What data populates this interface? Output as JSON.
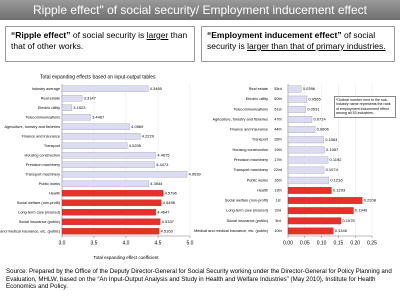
{
  "header": {
    "title": "Ripple effect\" of social security/ Employment inducement effect"
  },
  "callouts": [
    {
      "bold": "“Ripple effect”",
      "text": " of social security is ",
      "underline": "larger",
      "rest": " than that of other works."
    },
    {
      "bold": "“Employment inducement effect”",
      "text": " of social security is ",
      "underline": "larger than that of primary industries."
    }
  ],
  "chart_data": [
    {
      "type": "bar",
      "orientation": "horizontal",
      "title": "Total expanding effects based on input-output tables",
      "x_label": "Total expanding effect coefficient",
      "categories": [
        "Industry average",
        "Real estate",
        "Electric utility",
        "Telecommunications",
        "Agriculture, forestry and fisheries",
        "Finance and insurance",
        "Transport",
        "Housing construction",
        "Precision machinery",
        "Transport machinery",
        "Public works",
        "Health",
        "Social welfare (non-profit)",
        "Long-term care (insured)",
        "Social insurance (public)",
        "Medical and medical insurance, etc. (public)"
      ],
      "values": [
        4.3465,
        3.3147,
        3.1523,
        3.4467,
        4.0569,
        4.2229,
        4.0205,
        4.4675,
        4.4473,
        4.9539,
        4.3544,
        4.5796,
        4.5498,
        4.4647,
        4.5337,
        4.5163
      ],
      "colors": [
        "#dcdcf0",
        "#dcdcf0",
        "#dcdcf0",
        "#dcdcf0",
        "#dcdcf0",
        "#dcdcf0",
        "#dcdcf0",
        "#dcdcf0",
        "#dcdcf0",
        "#dcdcf0",
        "#dcdcf0",
        "#e8302a",
        "#e8302a",
        "#e8302a",
        "#e8302a",
        "#e8302a"
      ],
      "xlim": [
        3,
        5
      ],
      "xticks": [
        {
          "value": 3,
          "label": "3.0"
        },
        3.5,
        {
          "value": 4,
          "label": "4.0"
        },
        4.5,
        {
          "value": 5,
          "label": "5.0"
        }
      ],
      "grid": true
    },
    {
      "type": "bar",
      "orientation": "horizontal",
      "annotation": "*Ordinal number next to the sub-industry name represents the rank of employment inducement effect among all 53 industries.",
      "categories": [
        "Real estate",
        "Electric utility",
        "Telecommunications",
        "Agriculture, forestry and fisheries",
        "Finance and insurance",
        "Transport",
        "Housing construction",
        "Precision machinery",
        "Transport machinery",
        "Public works",
        "Health",
        "Social welfare (non-profit)",
        "Long-term care (insured)",
        "Social insurance (public)",
        "Medical and medical insurance, etc. (public)"
      ],
      "ranks": [
        "53rd",
        "50th",
        "51st",
        "47th",
        "44th",
        "28th",
        "19th",
        "17th",
        "22nd",
        "16th",
        "13th",
        "1st",
        "2nd",
        "3rd",
        "10th"
      ],
      "values": [
        0.0396,
        0.0565,
        0.0531,
        0.0714,
        0.0806,
        0.1064,
        0.1087,
        0.1192,
        0.1074,
        0.1216,
        0.1293,
        0.2208,
        0.1949,
        0.1575,
        0.1346
      ],
      "colors": [
        "#dcdcf0",
        "#dcdcf0",
        "#dcdcf0",
        "#dcdcf0",
        "#dcdcf0",
        "#dcdcf0",
        "#dcdcf0",
        "#dcdcf0",
        "#dcdcf0",
        "#dcdcf0",
        "#e8302a",
        "#e8302a",
        "#e8302a",
        "#e8302a",
        "#e8302a"
      ],
      "xlim": [
        0,
        0.25
      ],
      "xticks": [
        {
          "value": 0,
          "label": "0.00"
        },
        0.05,
        {
          "value": 0.1,
          "label": "0.10"
        },
        0.15,
        {
          "value": 0.2,
          "label": "0.20"
        },
        0.25
      ],
      "grid": true
    }
  ],
  "source": "Source: Prepared by the Office of the Deputy Director-General for Social Security working under the Director-General for Policy Planning and Evaluation, MHLW, based on the “An Input-Output Analysis and Study in Health and Welfare Industries” (May 2010), Institute for Health Economics and Policy."
}
